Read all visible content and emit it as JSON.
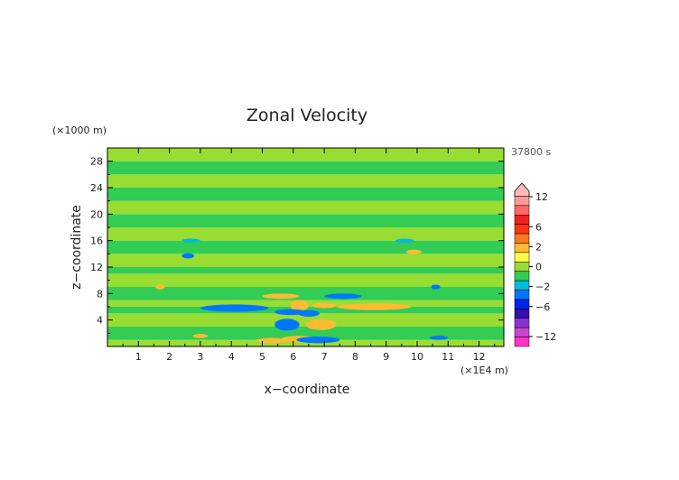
{
  "chart_data": {
    "type": "heatmap",
    "title": "Zonal Velocity",
    "xlabel": "x−coordinate",
    "ylabel": "z−coordinate",
    "x_unit": "(×1E4 m)",
    "y_unit": "(×1000 m)",
    "time_label": "37800 s",
    "xlim": [
      0,
      12.8
    ],
    "ylim": [
      0,
      30
    ],
    "x_ticks": [
      1,
      2,
      3,
      4,
      5,
      6,
      7,
      8,
      9,
      10,
      11,
      12
    ],
    "y_ticks": [
      4,
      8,
      12,
      16,
      20,
      24,
      28
    ],
    "colorbar": {
      "tick_labels": [
        "12",
        "6",
        "2",
        "0",
        "−2",
        "−6",
        "−12"
      ],
      "tick_values": [
        12,
        6,
        2,
        0,
        -2,
        -6,
        -12
      ],
      "levels": [
        -14,
        -12,
        -10,
        -8,
        -6,
        -4,
        -2,
        -1,
        0,
        1,
        2,
        4,
        6,
        8,
        10,
        12,
        14
      ],
      "colors": [
        "#ff33cc",
        "#cc44cc",
        "#8833cc",
        "#3311aa",
        "#0022ee",
        "#0077ff",
        "#00bbdd",
        "#33cc55",
        "#99dd33",
        "#ffff44",
        "#ffbb33",
        "#ff7722",
        "#ff3311",
        "#ee2222",
        "#ff6666",
        "#ff9999",
        "#ffbbbb"
      ]
    },
    "bands": [
      {
        "z0": 0,
        "z1": 1,
        "value": 0.5
      },
      {
        "z0": 1,
        "z1": 3,
        "value": -0.5
      },
      {
        "z0": 3,
        "z1": 5,
        "value": 0.5
      },
      {
        "z0": 5,
        "z1": 6,
        "value": -0.5
      },
      {
        "z0": 6,
        "z1": 7,
        "value": 0.5
      },
      {
        "z0": 7,
        "z1": 9,
        "value": -0.5
      },
      {
        "z0": 9,
        "z1": 11,
        "value": 0.5
      },
      {
        "z0": 11,
        "z1": 12,
        "value": -0.5
      },
      {
        "z0": 12,
        "z1": 14,
        "value": 0.5
      },
      {
        "z0": 14,
        "z1": 16,
        "value": -0.5
      },
      {
        "z0": 16,
        "z1": 18,
        "value": 0.5
      },
      {
        "z0": 18,
        "z1": 20,
        "value": -0.5
      },
      {
        "z0": 20,
        "z1": 22,
        "value": 0.5
      },
      {
        "z0": 22,
        "z1": 24,
        "value": -0.5
      },
      {
        "z0": 24,
        "z1": 26,
        "value": 0.5
      },
      {
        "z0": 26,
        "z1": 28,
        "value": -0.5
      },
      {
        "z0": 28,
        "z1": 30,
        "value": 0.5
      }
    ],
    "features": [
      {
        "x": 6.2,
        "z": 1.1,
        "rx": 0.6,
        "rz": 0.5,
        "value": 3
      },
      {
        "x": 5.3,
        "z": 0.9,
        "rx": 0.5,
        "rz": 0.4,
        "value": 3
      },
      {
        "x": 6.8,
        "z": 1.0,
        "rx": 0.7,
        "rz": 0.5,
        "value": -3
      },
      {
        "x": 5.8,
        "z": 3.3,
        "rx": 0.4,
        "rz": 0.9,
        "value": -4
      },
      {
        "x": 6.9,
        "z": 3.3,
        "rx": 0.5,
        "rz": 0.8,
        "value": 3
      },
      {
        "x": 6.2,
        "z": 6.2,
        "rx": 0.3,
        "rz": 0.8,
        "value": 3
      },
      {
        "x": 6.5,
        "z": 5.0,
        "rx": 0.35,
        "rz": 0.5,
        "value": -3
      },
      {
        "x": 4.1,
        "z": 5.8,
        "rx": 1.1,
        "rz": 0.55,
        "value": -3
      },
      {
        "x": 5.9,
        "z": 5.2,
        "rx": 0.5,
        "rz": 0.45,
        "value": -3
      },
      {
        "x": 5.6,
        "z": 7.6,
        "rx": 0.6,
        "rz": 0.4,
        "value": 3
      },
      {
        "x": 7.6,
        "z": 7.6,
        "rx": 0.6,
        "rz": 0.4,
        "value": -3
      },
      {
        "x": 8.6,
        "z": 6.0,
        "rx": 1.2,
        "rz": 0.5,
        "value": 3
      },
      {
        "x": 7.0,
        "z": 6.2,
        "rx": 0.4,
        "rz": 0.4,
        "value": 3
      },
      {
        "x": 2.6,
        "z": 13.7,
        "rx": 0.2,
        "rz": 0.4,
        "value": -3
      },
      {
        "x": 9.9,
        "z": 14.3,
        "rx": 0.25,
        "rz": 0.35,
        "value": 3
      },
      {
        "x": 1.7,
        "z": 9.0,
        "rx": 0.15,
        "rz": 0.35,
        "value": 3
      },
      {
        "x": 10.6,
        "z": 9.0,
        "rx": 0.15,
        "rz": 0.35,
        "value": -3
      },
      {
        "x": 3.0,
        "z": 1.6,
        "rx": 0.25,
        "rz": 0.3,
        "value": 3
      },
      {
        "x": 10.7,
        "z": 1.3,
        "rx": 0.3,
        "rz": 0.3,
        "value": -3
      },
      {
        "x": 2.7,
        "z": 16.0,
        "rx": 0.3,
        "rz": 0.3,
        "value": -1.5
      },
      {
        "x": 9.6,
        "z": 16.0,
        "rx": 0.3,
        "rz": 0.3,
        "value": -1.5
      }
    ]
  }
}
